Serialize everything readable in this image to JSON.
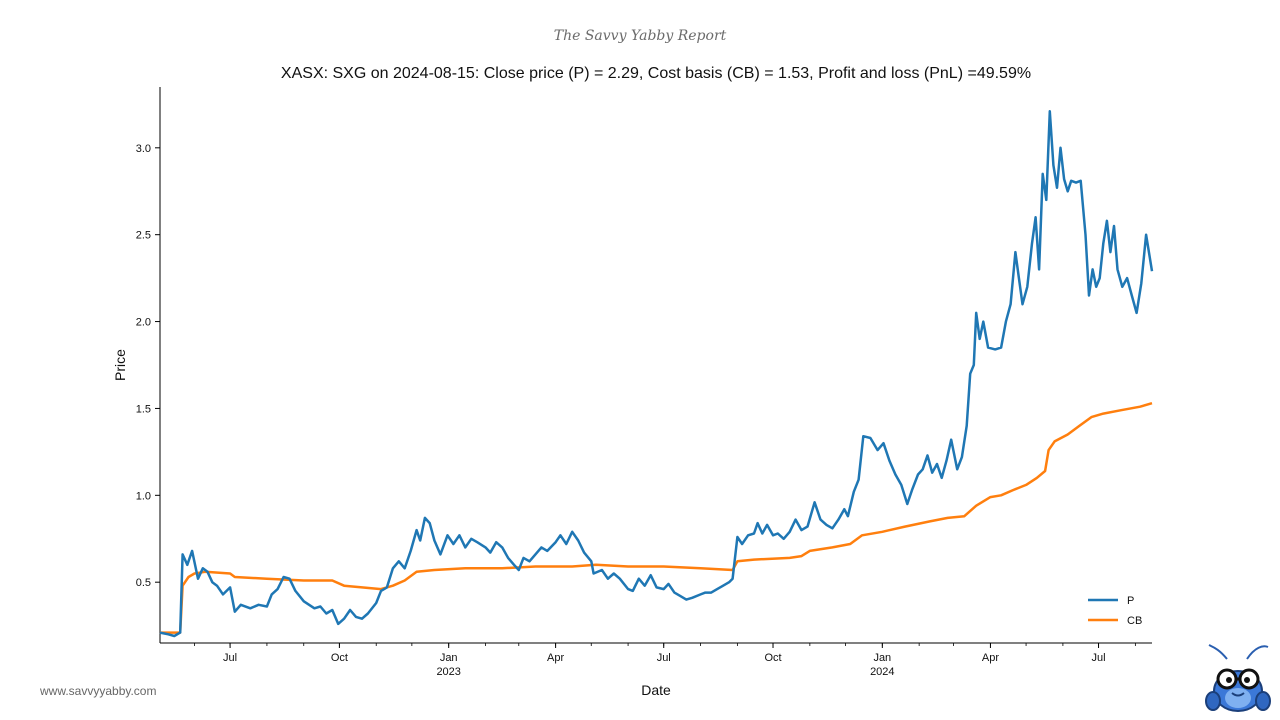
{
  "brand": "The Savvy Yabby Report",
  "footer": {
    "website": "www.savvyyabby.com"
  },
  "colors": {
    "price": "#1f77b4",
    "cost_basis": "#ff7f0e",
    "axis": "#000000"
  },
  "chart_data": {
    "type": "line",
    "title": "XASX: SXG on 2024-08-15: Close price (P) = 2.29, Cost basis (CB) = 1.53, Profit and loss (PnL) =49.59%",
    "xlabel": "Date",
    "ylabel": "Price",
    "xlim": [
      "2022-05-03",
      "2024-08-15"
    ],
    "ylim": [
      0.15,
      3.35
    ],
    "grid": false,
    "legend_position": "lower-right",
    "x_ticks": [
      {
        "date": "2022-07-01",
        "label": "Jul",
        "sub": ""
      },
      {
        "date": "2022-10-01",
        "label": "Oct",
        "sub": ""
      },
      {
        "date": "2023-01-01",
        "label": "Jan",
        "sub": "2023"
      },
      {
        "date": "2023-04-01",
        "label": "Apr",
        "sub": ""
      },
      {
        "date": "2023-07-01",
        "label": "Jul",
        "sub": ""
      },
      {
        "date": "2023-10-01",
        "label": "Oct",
        "sub": ""
      },
      {
        "date": "2024-01-01",
        "label": "Jan",
        "sub": "2024"
      },
      {
        "date": "2024-04-01",
        "label": "Apr",
        "sub": ""
      },
      {
        "date": "2024-07-01",
        "label": "Jul",
        "sub": ""
      }
    ],
    "y_ticks": [
      {
        "value": 0.5,
        "label": "0.5"
      },
      {
        "value": 1.0,
        "label": "1.0"
      },
      {
        "value": 1.5,
        "label": "1.5"
      },
      {
        "value": 2.0,
        "label": "2.0"
      },
      {
        "value": 2.5,
        "label": "2.5"
      },
      {
        "value": 3.0,
        "label": "3.0"
      }
    ],
    "series": [
      {
        "name": "P",
        "color": "#1f77b4",
        "points": [
          [
            "2022-05-03",
            0.21
          ],
          [
            "2022-05-10",
            0.2
          ],
          [
            "2022-05-15",
            0.19
          ],
          [
            "2022-05-20",
            0.21
          ],
          [
            "2022-05-22",
            0.66
          ],
          [
            "2022-05-26",
            0.6
          ],
          [
            "2022-05-30",
            0.68
          ],
          [
            "2022-06-04",
            0.52
          ],
          [
            "2022-06-08",
            0.58
          ],
          [
            "2022-06-12",
            0.56
          ],
          [
            "2022-06-16",
            0.5
          ],
          [
            "2022-06-20",
            0.48
          ],
          [
            "2022-06-25",
            0.43
          ],
          [
            "2022-07-01",
            0.47
          ],
          [
            "2022-07-05",
            0.33
          ],
          [
            "2022-07-10",
            0.37
          ],
          [
            "2022-07-18",
            0.35
          ],
          [
            "2022-07-25",
            0.37
          ],
          [
            "2022-08-01",
            0.36
          ],
          [
            "2022-08-05",
            0.43
          ],
          [
            "2022-08-10",
            0.46
          ],
          [
            "2022-08-15",
            0.53
          ],
          [
            "2022-08-20",
            0.52
          ],
          [
            "2022-08-25",
            0.45
          ],
          [
            "2022-09-01",
            0.39
          ],
          [
            "2022-09-10",
            0.35
          ],
          [
            "2022-09-15",
            0.36
          ],
          [
            "2022-09-20",
            0.32
          ],
          [
            "2022-09-25",
            0.34
          ],
          [
            "2022-09-30",
            0.26
          ],
          [
            "2022-10-05",
            0.29
          ],
          [
            "2022-10-10",
            0.34
          ],
          [
            "2022-10-15",
            0.3
          ],
          [
            "2022-10-20",
            0.29
          ],
          [
            "2022-10-25",
            0.32
          ],
          [
            "2022-11-01",
            0.38
          ],
          [
            "2022-11-05",
            0.45
          ],
          [
            "2022-11-10",
            0.47
          ],
          [
            "2022-11-15",
            0.58
          ],
          [
            "2022-11-20",
            0.62
          ],
          [
            "2022-11-25",
            0.58
          ],
          [
            "2022-11-30",
            0.68
          ],
          [
            "2022-12-05",
            0.8
          ],
          [
            "2022-12-08",
            0.74
          ],
          [
            "2022-12-12",
            0.87
          ],
          [
            "2022-12-16",
            0.84
          ],
          [
            "2022-12-20",
            0.74
          ],
          [
            "2022-12-25",
            0.66
          ],
          [
            "2022-12-31",
            0.77
          ],
          [
            "2023-01-05",
            0.72
          ],
          [
            "2023-01-10",
            0.77
          ],
          [
            "2023-01-15",
            0.7
          ],
          [
            "2023-01-20",
            0.75
          ],
          [
            "2023-01-25",
            0.73
          ],
          [
            "2023-02-01",
            0.7
          ],
          [
            "2023-02-05",
            0.67
          ],
          [
            "2023-02-10",
            0.73
          ],
          [
            "2023-02-15",
            0.7
          ],
          [
            "2023-02-20",
            0.64
          ],
          [
            "2023-02-25",
            0.6
          ],
          [
            "2023-03-01",
            0.57
          ],
          [
            "2023-03-05",
            0.64
          ],
          [
            "2023-03-10",
            0.62
          ],
          [
            "2023-03-15",
            0.66
          ],
          [
            "2023-03-20",
            0.7
          ],
          [
            "2023-03-25",
            0.68
          ],
          [
            "2023-04-01",
            0.73
          ],
          [
            "2023-04-05",
            0.77
          ],
          [
            "2023-04-10",
            0.72
          ],
          [
            "2023-04-15",
            0.79
          ],
          [
            "2023-04-20",
            0.74
          ],
          [
            "2023-04-25",
            0.67
          ],
          [
            "2023-05-01",
            0.62
          ],
          [
            "2023-05-03",
            0.55
          ],
          [
            "2023-05-10",
            0.57
          ],
          [
            "2023-05-15",
            0.52
          ],
          [
            "2023-05-20",
            0.55
          ],
          [
            "2023-05-25",
            0.52
          ],
          [
            "2023-06-01",
            0.46
          ],
          [
            "2023-06-05",
            0.45
          ],
          [
            "2023-06-10",
            0.52
          ],
          [
            "2023-06-15",
            0.48
          ],
          [
            "2023-06-20",
            0.54
          ],
          [
            "2023-06-25",
            0.47
          ],
          [
            "2023-07-01",
            0.46
          ],
          [
            "2023-07-05",
            0.49
          ],
          [
            "2023-07-10",
            0.44
          ],
          [
            "2023-07-15",
            0.42
          ],
          [
            "2023-07-20",
            0.4
          ],
          [
            "2023-07-25",
            0.41
          ],
          [
            "2023-08-01",
            0.43
          ],
          [
            "2023-08-05",
            0.44
          ],
          [
            "2023-08-10",
            0.44
          ],
          [
            "2023-08-15",
            0.46
          ],
          [
            "2023-08-20",
            0.48
          ],
          [
            "2023-08-25",
            0.5
          ],
          [
            "2023-08-28",
            0.52
          ],
          [
            "2023-09-01",
            0.76
          ],
          [
            "2023-09-05",
            0.72
          ],
          [
            "2023-09-10",
            0.77
          ],
          [
            "2023-09-15",
            0.78
          ],
          [
            "2023-09-18",
            0.84
          ],
          [
            "2023-09-22",
            0.78
          ],
          [
            "2023-09-26",
            0.83
          ],
          [
            "2023-10-01",
            0.77
          ],
          [
            "2023-10-05",
            0.78
          ],
          [
            "2023-10-10",
            0.75
          ],
          [
            "2023-10-15",
            0.79
          ],
          [
            "2023-10-20",
            0.86
          ],
          [
            "2023-10-25",
            0.8
          ],
          [
            "2023-10-30",
            0.82
          ],
          [
            "2023-11-05",
            0.96
          ],
          [
            "2023-11-10",
            0.86
          ],
          [
            "2023-11-15",
            0.83
          ],
          [
            "2023-11-20",
            0.81
          ],
          [
            "2023-11-25",
            0.86
          ],
          [
            "2023-11-30",
            0.92
          ],
          [
            "2023-12-03",
            0.88
          ],
          [
            "2023-12-08",
            1.02
          ],
          [
            "2023-12-12",
            1.09
          ],
          [
            "2023-12-16",
            1.34
          ],
          [
            "2023-12-22",
            1.33
          ],
          [
            "2023-12-28",
            1.26
          ],
          [
            "2024-01-02",
            1.3
          ],
          [
            "2024-01-07",
            1.2
          ],
          [
            "2024-01-12",
            1.12
          ],
          [
            "2024-01-17",
            1.06
          ],
          [
            "2024-01-22",
            0.95
          ],
          [
            "2024-01-26",
            1.03
          ],
          [
            "2024-01-31",
            1.12
          ],
          [
            "2024-02-04",
            1.15
          ],
          [
            "2024-02-08",
            1.23
          ],
          [
            "2024-02-12",
            1.13
          ],
          [
            "2024-02-16",
            1.18
          ],
          [
            "2024-02-20",
            1.1
          ],
          [
            "2024-02-24",
            1.2
          ],
          [
            "2024-02-28",
            1.32
          ],
          [
            "2024-03-04",
            1.15
          ],
          [
            "2024-03-08",
            1.22
          ],
          [
            "2024-03-12",
            1.4
          ],
          [
            "2024-03-15",
            1.7
          ],
          [
            "2024-03-18",
            1.75
          ],
          [
            "2024-03-20",
            2.05
          ],
          [
            "2024-03-23",
            1.9
          ],
          [
            "2024-03-26",
            2.0
          ],
          [
            "2024-03-30",
            1.85
          ],
          [
            "2024-04-05",
            1.84
          ],
          [
            "2024-04-10",
            1.85
          ],
          [
            "2024-04-14",
            2.0
          ],
          [
            "2024-04-18",
            2.1
          ],
          [
            "2024-04-22",
            2.4
          ],
          [
            "2024-04-25",
            2.25
          ],
          [
            "2024-04-28",
            2.1
          ],
          [
            "2024-05-02",
            2.2
          ],
          [
            "2024-05-06",
            2.45
          ],
          [
            "2024-05-09",
            2.6
          ],
          [
            "2024-05-12",
            2.3
          ],
          [
            "2024-05-15",
            2.85
          ],
          [
            "2024-05-18",
            2.7
          ],
          [
            "2024-05-21",
            3.21
          ],
          [
            "2024-05-24",
            2.9
          ],
          [
            "2024-05-27",
            2.77
          ],
          [
            "2024-05-30",
            3.0
          ],
          [
            "2024-06-02",
            2.82
          ],
          [
            "2024-06-05",
            2.75
          ],
          [
            "2024-06-08",
            2.81
          ],
          [
            "2024-06-12",
            2.8
          ],
          [
            "2024-06-16",
            2.81
          ],
          [
            "2024-06-20",
            2.5
          ],
          [
            "2024-06-23",
            2.15
          ],
          [
            "2024-06-26",
            2.3
          ],
          [
            "2024-06-29",
            2.2
          ],
          [
            "2024-07-02",
            2.25
          ],
          [
            "2024-07-05",
            2.45
          ],
          [
            "2024-07-08",
            2.58
          ],
          [
            "2024-07-11",
            2.4
          ],
          [
            "2024-07-14",
            2.55
          ],
          [
            "2024-07-17",
            2.3
          ],
          [
            "2024-07-21",
            2.2
          ],
          [
            "2024-07-25",
            2.25
          ],
          [
            "2024-07-29",
            2.15
          ],
          [
            "2024-08-02",
            2.05
          ],
          [
            "2024-08-06",
            2.22
          ],
          [
            "2024-08-10",
            2.5
          ],
          [
            "2024-08-15",
            2.29
          ]
        ]
      },
      {
        "name": "CB",
        "color": "#ff7f0e",
        "points": [
          [
            "2022-05-03",
            0.21
          ],
          [
            "2022-05-20",
            0.21
          ],
          [
            "2022-05-22",
            0.48
          ],
          [
            "2022-05-27",
            0.53
          ],
          [
            "2022-06-01",
            0.55
          ],
          [
            "2022-06-10",
            0.56
          ],
          [
            "2022-07-01",
            0.55
          ],
          [
            "2022-07-05",
            0.53
          ],
          [
            "2022-08-01",
            0.52
          ],
          [
            "2022-09-01",
            0.51
          ],
          [
            "2022-09-25",
            0.51
          ],
          [
            "2022-10-05",
            0.48
          ],
          [
            "2022-10-20",
            0.47
          ],
          [
            "2022-11-05",
            0.46
          ],
          [
            "2022-11-15",
            0.48
          ],
          [
            "2022-11-25",
            0.51
          ],
          [
            "2022-12-05",
            0.56
          ],
          [
            "2022-12-20",
            0.57
          ],
          [
            "2023-01-15",
            0.58
          ],
          [
            "2023-02-15",
            0.58
          ],
          [
            "2023-03-15",
            0.59
          ],
          [
            "2023-04-15",
            0.59
          ],
          [
            "2023-05-05",
            0.6
          ],
          [
            "2023-06-01",
            0.59
          ],
          [
            "2023-07-01",
            0.59
          ],
          [
            "2023-08-01",
            0.58
          ],
          [
            "2023-08-28",
            0.57
          ],
          [
            "2023-09-01",
            0.62
          ],
          [
            "2023-09-15",
            0.63
          ],
          [
            "2023-10-15",
            0.64
          ],
          [
            "2023-10-25",
            0.65
          ],
          [
            "2023-11-01",
            0.68
          ],
          [
            "2023-11-20",
            0.7
          ],
          [
            "2023-12-05",
            0.72
          ],
          [
            "2023-12-15",
            0.77
          ],
          [
            "2024-01-01",
            0.79
          ],
          [
            "2024-01-20",
            0.82
          ],
          [
            "2024-02-10",
            0.85
          ],
          [
            "2024-02-25",
            0.87
          ],
          [
            "2024-03-10",
            0.88
          ],
          [
            "2024-03-20",
            0.94
          ],
          [
            "2024-04-01",
            0.99
          ],
          [
            "2024-04-10",
            1.0
          ],
          [
            "2024-04-20",
            1.03
          ],
          [
            "2024-05-01",
            1.06
          ],
          [
            "2024-05-10",
            1.1
          ],
          [
            "2024-05-17",
            1.14
          ],
          [
            "2024-05-20",
            1.26
          ],
          [
            "2024-05-25",
            1.31
          ],
          [
            "2024-06-05",
            1.35
          ],
          [
            "2024-06-15",
            1.4
          ],
          [
            "2024-06-25",
            1.45
          ],
          [
            "2024-07-05",
            1.47
          ],
          [
            "2024-07-20",
            1.49
          ],
          [
            "2024-08-05",
            1.51
          ],
          [
            "2024-08-15",
            1.53
          ]
        ]
      }
    ]
  }
}
